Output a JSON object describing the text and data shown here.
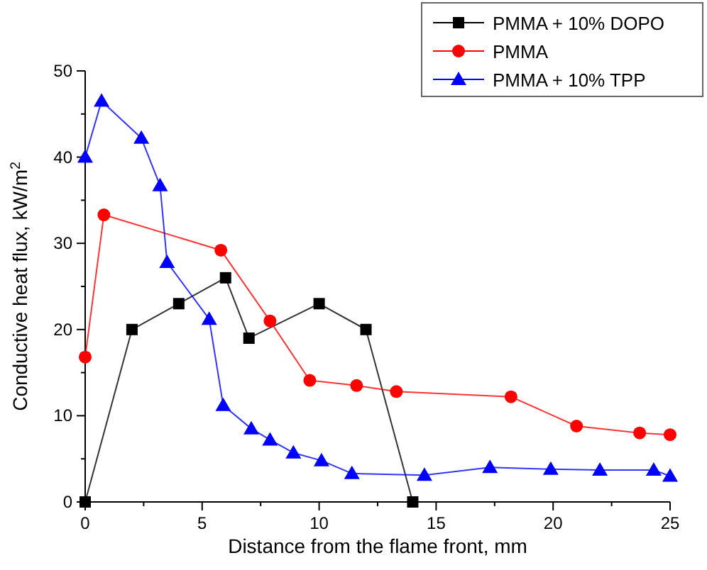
{
  "chart_data": {
    "type": "line",
    "xlabel": "Distance from the flame front, mm",
    "ylabel": "Conductive heat flux, kW/m$^{2}$",
    "xlim": [
      0,
      25
    ],
    "ylim": [
      0,
      50
    ],
    "xticks": [
      0,
      {
        "value": 2.5,
        "label": null
      },
      5,
      {
        "value": 7.5,
        "label": null
      },
      10,
      {
        "value": 12.5,
        "label": null
      },
      15,
      {
        "value": 17.5,
        "label": null
      },
      20,
      {
        "value": 22.5,
        "label": null
      },
      25
    ],
    "yticks": [
      0,
      {
        "value": 5,
        "label": null
      },
      10,
      {
        "value": 15,
        "label": null
      },
      20,
      {
        "value": 25,
        "label": null
      },
      30,
      {
        "value": 35,
        "label": null
      },
      40,
      {
        "value": 45,
        "label": null
      },
      50
    ],
    "grid": false,
    "legend": "top right",
    "series": [
      {
        "name": "PMMA + 10% DOPO",
        "color": "#000000",
        "marker": "square",
        "x": [
          0,
          2,
          4,
          6,
          7,
          10,
          12,
          14
        ],
        "values": [
          0,
          20,
          23,
          26,
          19,
          23,
          20,
          0
        ]
      },
      {
        "name": "PMMA",
        "color": "#ff0000",
        "marker": "circle",
        "x": [
          0,
          0.8,
          5.8,
          7.9,
          9.6,
          11.6,
          13.3,
          18.2,
          21,
          23.7,
          25
        ],
        "values": [
          16.8,
          33.3,
          29.2,
          21,
          14.1,
          13.5,
          12.8,
          12.2,
          8.8,
          8,
          7.8
        ]
      },
      {
        "name": "PMMA + 10% TPP",
        "color": "#0000ff",
        "marker": "triangle",
        "x": [
          0,
          0.7,
          2.4,
          3.2,
          3.5,
          5.3,
          5.9,
          7.1,
          7.9,
          8.9,
          10.1,
          11.4,
          14.5,
          17.3,
          19.9,
          22,
          24.3,
          25
        ],
        "values": [
          40,
          46.5,
          42.2,
          36.7,
          27.8,
          21.2,
          11.2,
          8.5,
          7.2,
          5.7,
          4.8,
          3.3,
          3.1,
          4,
          3.8,
          3.7,
          3.7,
          3
        ]
      }
    ]
  }
}
